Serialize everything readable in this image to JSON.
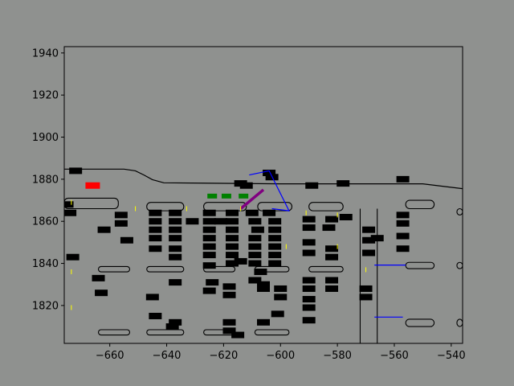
{
  "chart_data": {
    "type": "scatter",
    "title": "",
    "xlabel": "",
    "ylabel": "",
    "xlim": [
      -676,
      -536
    ],
    "ylim": [
      1802,
      1943
    ],
    "x_ticks": [
      -660,
      -640,
      -620,
      -600,
      -580,
      -560,
      -540
    ],
    "y_ticks": [
      1820,
      1840,
      1860,
      1880,
      1900,
      1920,
      1940
    ],
    "x_tick_labels": [
      "−660",
      "−640",
      "−620",
      "−600",
      "−580",
      "−560",
      "−540"
    ],
    "y_tick_labels": [
      "1820",
      "1840",
      "1860",
      "1880",
      "1900",
      "1920",
      "1940"
    ],
    "grid": false,
    "colors": {
      "background": "#8f918f",
      "objects": "#000000",
      "ego": "#ff0000",
      "agent": "#008000",
      "route": "#0000ff",
      "heading": "#800080",
      "lane_marks": "#ffff00"
    },
    "road_boundary": [
      [
        [
          -676,
          1884.8
        ],
        [
          -655,
          1884.8
        ],
        [
          -651,
          1884
        ],
        [
          -648,
          1882
        ],
        [
          -645,
          1879.8
        ],
        [
          -641,
          1878.3
        ],
        [
          -600,
          1877.8
        ],
        [
          -550,
          1877.8
        ],
        [
          -536,
          1875.5
        ]
      ]
    ],
    "curb_islands": [
      [
        -676,
        1871,
        -657,
        1866
      ],
      [
        -647,
        1869,
        -634,
        1865
      ],
      [
        -627,
        1869,
        -612,
        1865
      ],
      [
        -608,
        1869,
        -596,
        1865
      ],
      [
        -590,
        1869,
        -578,
        1865
      ],
      [
        -556,
        1870,
        -546,
        1866
      ],
      [
        -538,
        1866,
        -536,
        1863
      ],
      [
        -664,
        1838.5,
        -653,
        1836
      ],
      [
        -647,
        1838.5,
        -634,
        1836
      ],
      [
        -627,
        1838.5,
        -616,
        1836
      ],
      [
        -609,
        1838.5,
        -597,
        1836
      ],
      [
        -590,
        1838.5,
        -578,
        1836
      ],
      [
        -556,
        1840.5,
        -546,
        1837.5
      ],
      [
        -538,
        1840.5,
        -536,
        1837.5
      ],
      [
        -664,
        1808.5,
        -653,
        1806
      ],
      [
        -647,
        1808.5,
        -634,
        1806
      ],
      [
        -627,
        1808.5,
        -616,
        1806
      ],
      [
        -609,
        1808.5,
        -597,
        1806
      ],
      [
        -556,
        1813.5,
        -546,
        1810
      ],
      [
        -538,
        1813.5,
        -536,
        1810
      ]
    ],
    "vertical_curbs": [
      [
        -572,
        1866,
        -572,
        1802
      ],
      [
        -566,
        1866,
        -566,
        1802
      ]
    ],
    "objects": [
      [
        -672,
        1884
      ],
      [
        -614,
        1878
      ],
      [
        -612,
        1877
      ],
      [
        -604,
        1883
      ],
      [
        -603,
        1881
      ],
      [
        -589,
        1877
      ],
      [
        -578,
        1878
      ],
      [
        -557,
        1880
      ],
      [
        -675,
        1868
      ],
      [
        -674,
        1864
      ],
      [
        -673,
        1843
      ],
      [
        -656,
        1863
      ],
      [
        -656,
        1859
      ],
      [
        -662,
        1856
      ],
      [
        -654,
        1851
      ],
      [
        -644,
        1864
      ],
      [
        -637,
        1864
      ],
      [
        -644,
        1860
      ],
      [
        -637,
        1860
      ],
      [
        -644,
        1856
      ],
      [
        -637,
        1856
      ],
      [
        -644,
        1852
      ],
      [
        -637,
        1852
      ],
      [
        -644,
        1847
      ],
      [
        -637,
        1847
      ],
      [
        -637,
        1843
      ],
      [
        -625,
        1864
      ],
      [
        -617,
        1864
      ],
      [
        -625,
        1860
      ],
      [
        -617,
        1860
      ],
      [
        -625,
        1856
      ],
      [
        -617,
        1856
      ],
      [
        -625,
        1852
      ],
      [
        -617,
        1852
      ],
      [
        -625,
        1848
      ],
      [
        -617,
        1848
      ],
      [
        -625,
        1844
      ],
      [
        -617,
        1844
      ],
      [
        -625,
        1839
      ],
      [
        -617,
        1840
      ],
      [
        -610,
        1864
      ],
      [
        -604,
        1864
      ],
      [
        -609,
        1860
      ],
      [
        -602,
        1860
      ],
      [
        -608,
        1856
      ],
      [
        -602,
        1856
      ],
      [
        -609,
        1852
      ],
      [
        -602,
        1852
      ],
      [
        -609,
        1848
      ],
      [
        -602,
        1848
      ],
      [
        -609,
        1844
      ],
      [
        -602,
        1844
      ],
      [
        -609,
        1840
      ],
      [
        -602,
        1840
      ],
      [
        -590,
        1861
      ],
      [
        -582,
        1861
      ],
      [
        -590,
        1857
      ],
      [
        -583,
        1857
      ],
      [
        -590,
        1850
      ],
      [
        -582,
        1847
      ],
      [
        -590,
        1845
      ],
      [
        -582,
        1843
      ],
      [
        -577,
        1862
      ],
      [
        -569,
        1856
      ],
      [
        -569,
        1851
      ],
      [
        -566,
        1852
      ],
      [
        -569,
        1845
      ],
      [
        -557,
        1863
      ],
      [
        -557,
        1859
      ],
      [
        -557,
        1853
      ],
      [
        -557,
        1847
      ],
      [
        -570,
        1824
      ],
      [
        -570,
        1828
      ],
      [
        -664,
        1833
      ],
      [
        -663,
        1826
      ],
      [
        -645,
        1824
      ],
      [
        -637,
        1831
      ],
      [
        -644,
        1815
      ],
      [
        -637,
        1812
      ],
      [
        -624,
        1831
      ],
      [
        -625,
        1827
      ],
      [
        -618,
        1829
      ],
      [
        -618,
        1825
      ],
      [
        -618,
        1812
      ],
      [
        -618,
        1808
      ],
      [
        -609,
        1832
      ],
      [
        -606,
        1830
      ],
      [
        -600,
        1828
      ],
      [
        -600,
        1824
      ],
      [
        -606,
        1828
      ],
      [
        -601,
        1816
      ],
      [
        -606,
        1812
      ],
      [
        -590,
        1832
      ],
      [
        -582,
        1832
      ],
      [
        -590,
        1828
      ],
      [
        -582,
        1828
      ],
      [
        -590,
        1819
      ],
      [
        -590,
        1813
      ],
      [
        -590,
        1823
      ],
      [
        -638,
        1810
      ],
      [
        -615,
        1806
      ],
      [
        -631,
        1860
      ],
      [
        -621,
        1860
      ],
      [
        -607,
        1836
      ],
      [
        -614,
        1841
      ]
    ],
    "ego": [
      -666,
      1877
    ],
    "agents": [
      [
        -624,
        1872
      ],
      [
        -619,
        1872
      ],
      [
        -613,
        1872
      ]
    ],
    "route_paths": [
      [
        [
          -611,
          1882
        ],
        [
          -604,
          1884
        ],
        [
          -597,
          1865
        ],
        [
          -603,
          1866
        ]
      ],
      [
        [
          -567,
          1839.2
        ],
        [
          -556,
          1839.2
        ]
      ],
      [
        [
          -567,
          1814.5
        ],
        [
          -557,
          1814.5
        ]
      ]
    ],
    "heading_line": [
      [
        -614,
        1866
      ],
      [
        -606,
        1875
      ]
    ],
    "lane_marks": [
      [
        -673.5,
        1869
      ],
      [
        -673.5,
        1836
      ],
      [
        -673.5,
        1819
      ],
      [
        -676,
        1820
      ],
      [
        -651,
        1866
      ],
      [
        -633,
        1866
      ],
      [
        -614,
        1866
      ],
      [
        -598,
        1848
      ],
      [
        -591,
        1864
      ],
      [
        -580,
        1863
      ],
      [
        -580,
        1848
      ],
      [
        -570,
        1837
      ]
    ]
  }
}
